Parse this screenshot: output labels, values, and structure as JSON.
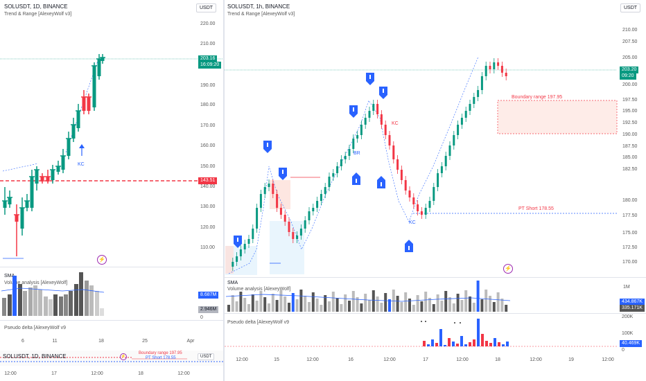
{
  "left": {
    "title": "SOLUSDT, 1D, BINANCE",
    "indicator": "Trend & Range [AlexeyWolf v3]",
    "currency": "USDT",
    "price_ticks": [
      "220.00",
      "210.00",
      "190.00",
      "180.00",
      "170.00",
      "160.00",
      "150.00",
      "140.00",
      "130.00",
      "120.00",
      "110.00"
    ],
    "price_badge": "203.16",
    "price_timer": "16:09:20",
    "level_badge": "143.51",
    "kc": "KC",
    "sma": "SMA",
    "vol_title": "Volume analysis [AlexeyWolf]",
    "vol_badge1": "8.687M",
    "vol_badge2": "2.946M",
    "vol_zero": "0",
    "delta_title": "Pseudo delta [AlexeyWolf v9",
    "time_ticks": [
      "6",
      "11",
      "18",
      "25",
      "Apr"
    ],
    "mini": {
      "title": "SOLUSDT, 1D, BINANCE",
      "currency": "USDT",
      "boundary": "Boundary range 197.95",
      "pt": "PT Short 178.55"
    },
    "bottom_ticks": [
      "12:00",
      "17",
      "12:00",
      "18",
      "12:00"
    ]
  },
  "right": {
    "title": "SOLUSDT, 1h, BINANCE",
    "indicator": "Trend & Range [AlexeyWolf v3]",
    "currency": "USDT",
    "price_ticks": [
      "210.00",
      "207.50",
      "205.00",
      "200.00",
      "197.50",
      "195.00",
      "192.50",
      "190.00",
      "187.50",
      "185.00",
      "182.50",
      "180.00",
      "177.50",
      "175.00",
      "172.50",
      "170.00"
    ],
    "price_badge": "203.20",
    "price_timer": "09:20",
    "boundary": "Boundary range 197.95",
    "pt_short": "PT Short 178.55",
    "kc1": "KC",
    "kc2": "KC",
    "br": "BR",
    "sma": "SMA",
    "vol_title": "Volume analysis [AlexeyWolf]",
    "vol_tick": "1M",
    "vol_badge1": "434.867K",
    "vol_badge2": "335.171K",
    "delta_title": "Pseudo delta [AlexeyWolf v9",
    "delta_ticks": [
      "200K",
      "100K",
      "0"
    ],
    "delta_badge": "40.469K",
    "time_ticks": [
      "12:00",
      "15",
      "12:00",
      "16",
      "12:00",
      "17",
      "12:00",
      "18",
      "12:00",
      "19",
      "12:00"
    ]
  },
  "colors": {
    "up": "#089981",
    "down": "#f23645",
    "marker": "#2962ff",
    "accent_red": "#f23645"
  }
}
